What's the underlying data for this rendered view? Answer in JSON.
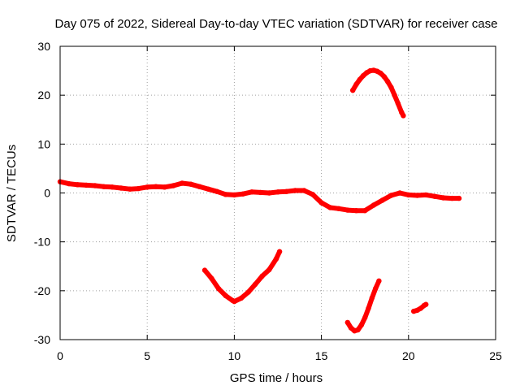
{
  "chart_data": {
    "type": "line",
    "title": "Day 075 of 2022, Sidereal Day-to-day VTEC variation (SDTVAR) for receiver case",
    "xlabel": "GPS time / hours",
    "ylabel": "SDTVAR / TECUs",
    "xlim": [
      0,
      25
    ],
    "ylim": [
      -30,
      30
    ],
    "xticks": [
      0,
      5,
      10,
      15,
      20,
      25
    ],
    "yticks": [
      -30,
      -20,
      -10,
      0,
      10,
      20,
      30
    ],
    "xtick_labels": [
      "0",
      "5",
      "10",
      "15",
      "20",
      "25"
    ],
    "ytick_labels": [
      "-30",
      "-20",
      "-10",
      "0",
      "10",
      "20",
      "30"
    ],
    "grid": true,
    "legend": "none",
    "color": "#ff0000",
    "series": [
      {
        "name": "arc-main",
        "x": [
          0,
          0.5,
          1,
          1.5,
          2,
          2.5,
          3,
          3.5,
          4,
          4.5,
          5,
          5.5,
          6,
          6.5,
          7,
          7.5,
          8,
          8.5,
          9,
          9.5,
          10,
          10.5,
          11,
          11.5,
          12,
          12.5,
          13,
          13.5,
          14,
          14.5,
          15,
          15.5,
          16,
          16.5,
          17,
          17.5,
          18,
          18.5,
          19,
          19.5,
          20,
          20.5,
          21,
          21.5,
          22,
          22.5,
          22.9
        ],
        "y": [
          2.3,
          1.9,
          1.7,
          1.6,
          1.5,
          1.3,
          1.2,
          1.0,
          0.8,
          0.9,
          1.2,
          1.3,
          1.2,
          1.5,
          2.0,
          1.8,
          1.3,
          0.8,
          0.3,
          -0.3,
          -0.4,
          -0.2,
          0.2,
          0.1,
          0.0,
          0.2,
          0.3,
          0.5,
          0.5,
          -0.3,
          -2.0,
          -3.0,
          -3.2,
          -3.5,
          -3.6,
          -3.6,
          -2.5,
          -1.5,
          -0.5,
          0.0,
          -0.4,
          -0.5,
          -0.4,
          -0.7,
          -1.0,
          -1.1,
          -1.1
        ]
      },
      {
        "name": "arc-1",
        "x": [
          8.3,
          8.7,
          9.1,
          9.5,
          9.9,
          10.0,
          10.4,
          10.8,
          11.2,
          11.6,
          12.0,
          12.4,
          12.6
        ],
        "y": [
          -15.8,
          -17.5,
          -19.6,
          -21.0,
          -22.0,
          -22.2,
          -21.5,
          -20.3,
          -18.7,
          -17.0,
          -15.7,
          -13.5,
          -12.0
        ]
      },
      {
        "name": "arc-2",
        "x": [
          16.8,
          17.0,
          17.2,
          17.4,
          17.6,
          17.8,
          18.0,
          18.2,
          18.4,
          18.6,
          18.8,
          19.0,
          19.2,
          19.4,
          19.6,
          19.7
        ],
        "y": [
          21.0,
          22.2,
          23.2,
          24.0,
          24.6,
          25.0,
          25.1,
          24.9,
          24.5,
          23.8,
          22.8,
          21.6,
          20.0,
          18.3,
          16.5,
          15.8
        ]
      },
      {
        "name": "arc-3",
        "x": [
          16.5,
          16.7,
          16.9,
          17.1,
          17.3,
          17.5,
          17.7,
          17.9,
          18.1,
          18.3
        ],
        "y": [
          -26.5,
          -27.6,
          -28.2,
          -28.0,
          -27.0,
          -25.5,
          -23.6,
          -21.5,
          -19.6,
          -18.0
        ]
      },
      {
        "name": "arc-4",
        "x": [
          20.3,
          20.5,
          20.7,
          20.9,
          21.0
        ],
        "y": [
          -24.2,
          -24.0,
          -23.6,
          -23.0,
          -22.8
        ]
      }
    ]
  }
}
